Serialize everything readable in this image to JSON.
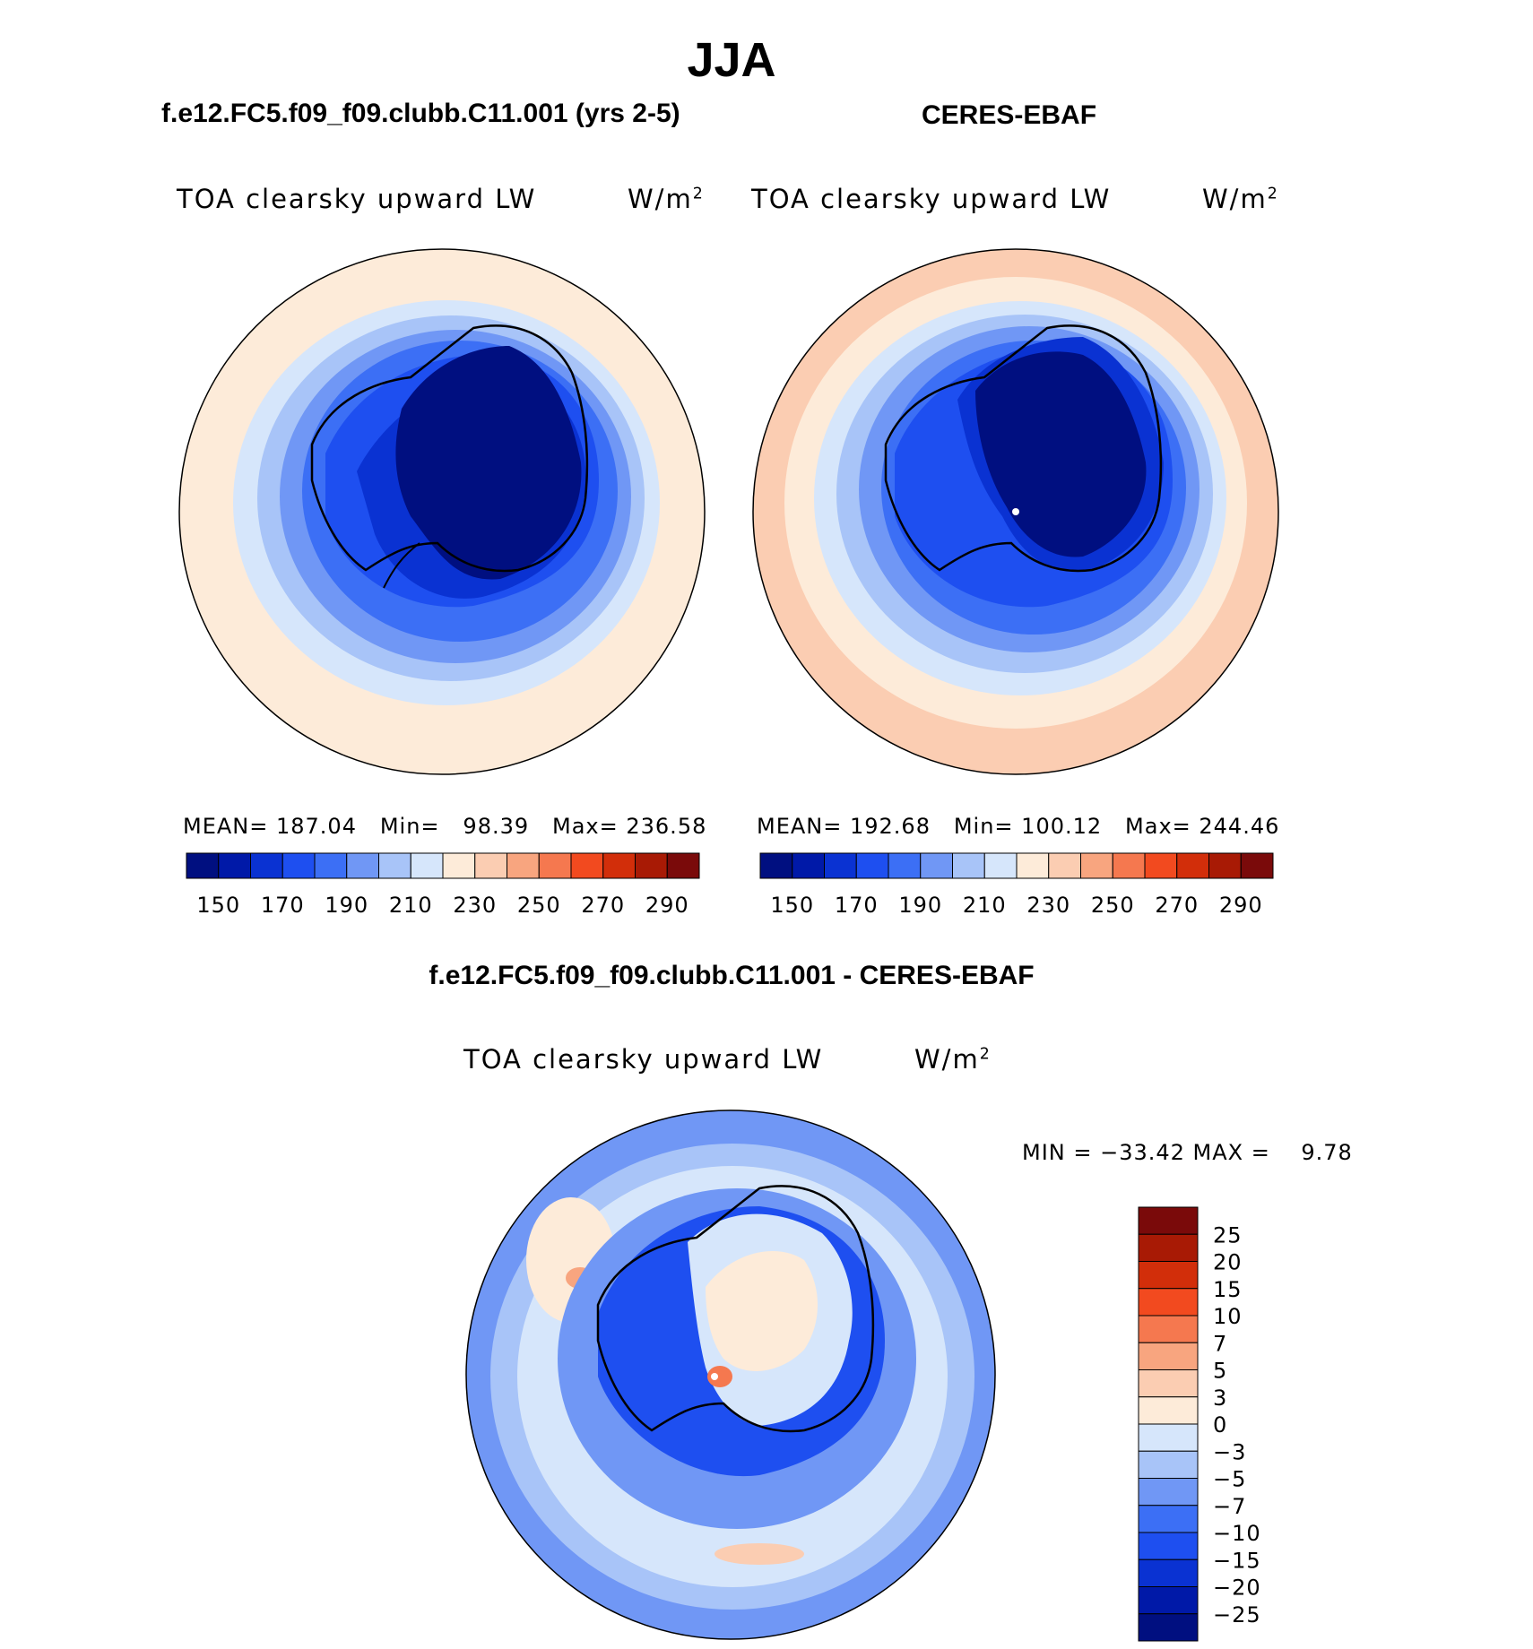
{
  "header": {
    "title": "JJA"
  },
  "panels": [
    {
      "title": "f.e12.FC5.f09_f09.clubb.C11.001 (yrs 2-5)",
      "variable": "TOA clearsky upward LW",
      "units_base": "W/m",
      "units_exp": "2",
      "stats": "MEAN= 187.04   Min=   98.39   Max= 236.58",
      "colorbar_ticks": [
        "150",
        "170",
        "190",
        "210",
        "230",
        "250",
        "270",
        "290"
      ]
    },
    {
      "title": "CERES-EBAF",
      "variable": "TOA clearsky upward LW",
      "units_base": "W/m",
      "units_exp": "2",
      "stats": "MEAN= 192.68   Min= 100.12   Max= 244.46",
      "colorbar_ticks": [
        "150",
        "170",
        "190",
        "210",
        "230",
        "250",
        "270",
        "290"
      ]
    }
  ],
  "difference": {
    "title": "f.e12.FC5.f09_f09.clubb.C11.001 - CERES-EBAF",
    "variable": "TOA clearsky upward LW",
    "units_base": "W/m",
    "units_exp": "2",
    "stats": "MIN = −33.42 MAX =    9.78",
    "colorbar_ticks": [
      "25",
      "20",
      "15",
      "10",
      "7",
      "5",
      "3",
      "0",
      "−3",
      "−5",
      "−7",
      "−10",
      "−15",
      "−20",
      "−25"
    ]
  },
  "colors": {
    "abs_scale": [
      "#000f80",
      "#0019a8",
      "#0a32d2",
      "#1e4ff0",
      "#3c6ff5",
      "#7097f5",
      "#a8c4f8",
      "#d6e6fb",
      "#fdebd9",
      "#fbcdb2",
      "#f8a57f",
      "#f5784f",
      "#f24a1f",
      "#d22e0a",
      "#a81a05",
      "#7a0a0a"
    ],
    "diff_scale": [
      "#000f80",
      "#0019a8",
      "#0a32d2",
      "#1e4ff0",
      "#3c6ff5",
      "#7097f5",
      "#a8c4f8",
      "#d6e6fb",
      "#fdebd9",
      "#fbcdb2",
      "#f8a57f",
      "#f5784f",
      "#f24a1f",
      "#d22e0a",
      "#a81a05",
      "#7a0a0a"
    ]
  }
}
